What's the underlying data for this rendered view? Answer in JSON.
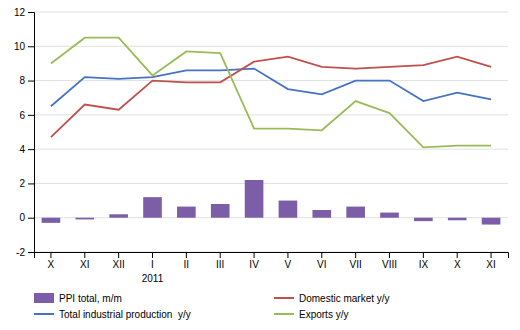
{
  "chart_data": {
    "type": "bar",
    "categories": [
      "X",
      "XI",
      "XII",
      "I",
      "II",
      "III",
      "IV",
      "V",
      "VI",
      "VII",
      "VIII",
      "IX",
      "X",
      "XI"
    ],
    "series": [
      {
        "name": "PPI total, m/m",
        "type": "bar",
        "color": "#7B5EA7",
        "values": [
          -0.3,
          -0.1,
          0.2,
          1.2,
          0.65,
          0.8,
          2.2,
          1.0,
          0.45,
          0.65,
          0.3,
          -0.2,
          -0.15,
          -0.4
        ]
      },
      {
        "name": "Total industrial production  y/y",
        "type": "line",
        "color": "#4472C4",
        "values": [
          6.5,
          8.2,
          8.1,
          8.2,
          8.6,
          8.6,
          8.7,
          7.5,
          7.2,
          8.0,
          8.0,
          6.8,
          7.3,
          6.9
        ]
      },
      {
        "name": "Domestic market y/y",
        "type": "line",
        "color": "#C0504D",
        "values": [
          4.7,
          6.6,
          6.3,
          8.0,
          7.9,
          7.9,
          9.1,
          9.4,
          8.8,
          8.7,
          8.8,
          8.9,
          9.4,
          8.8
        ]
      },
      {
        "name": "Exports y/y",
        "type": "line",
        "color": "#9BBB59",
        "values": [
          9.0,
          10.5,
          10.5,
          8.3,
          9.7,
          9.6,
          5.2,
          5.2,
          5.1,
          6.8,
          6.1,
          4.1,
          4.2,
          4.2
        ]
      }
    ],
    "annotations": [
      {
        "text": "2011",
        "x": 3
      }
    ],
    "ylim": [
      -2,
      12
    ],
    "yticks": [
      -2,
      0,
      2,
      4,
      6,
      8,
      10,
      12
    ],
    "grid": true,
    "legend": "bottom"
  }
}
